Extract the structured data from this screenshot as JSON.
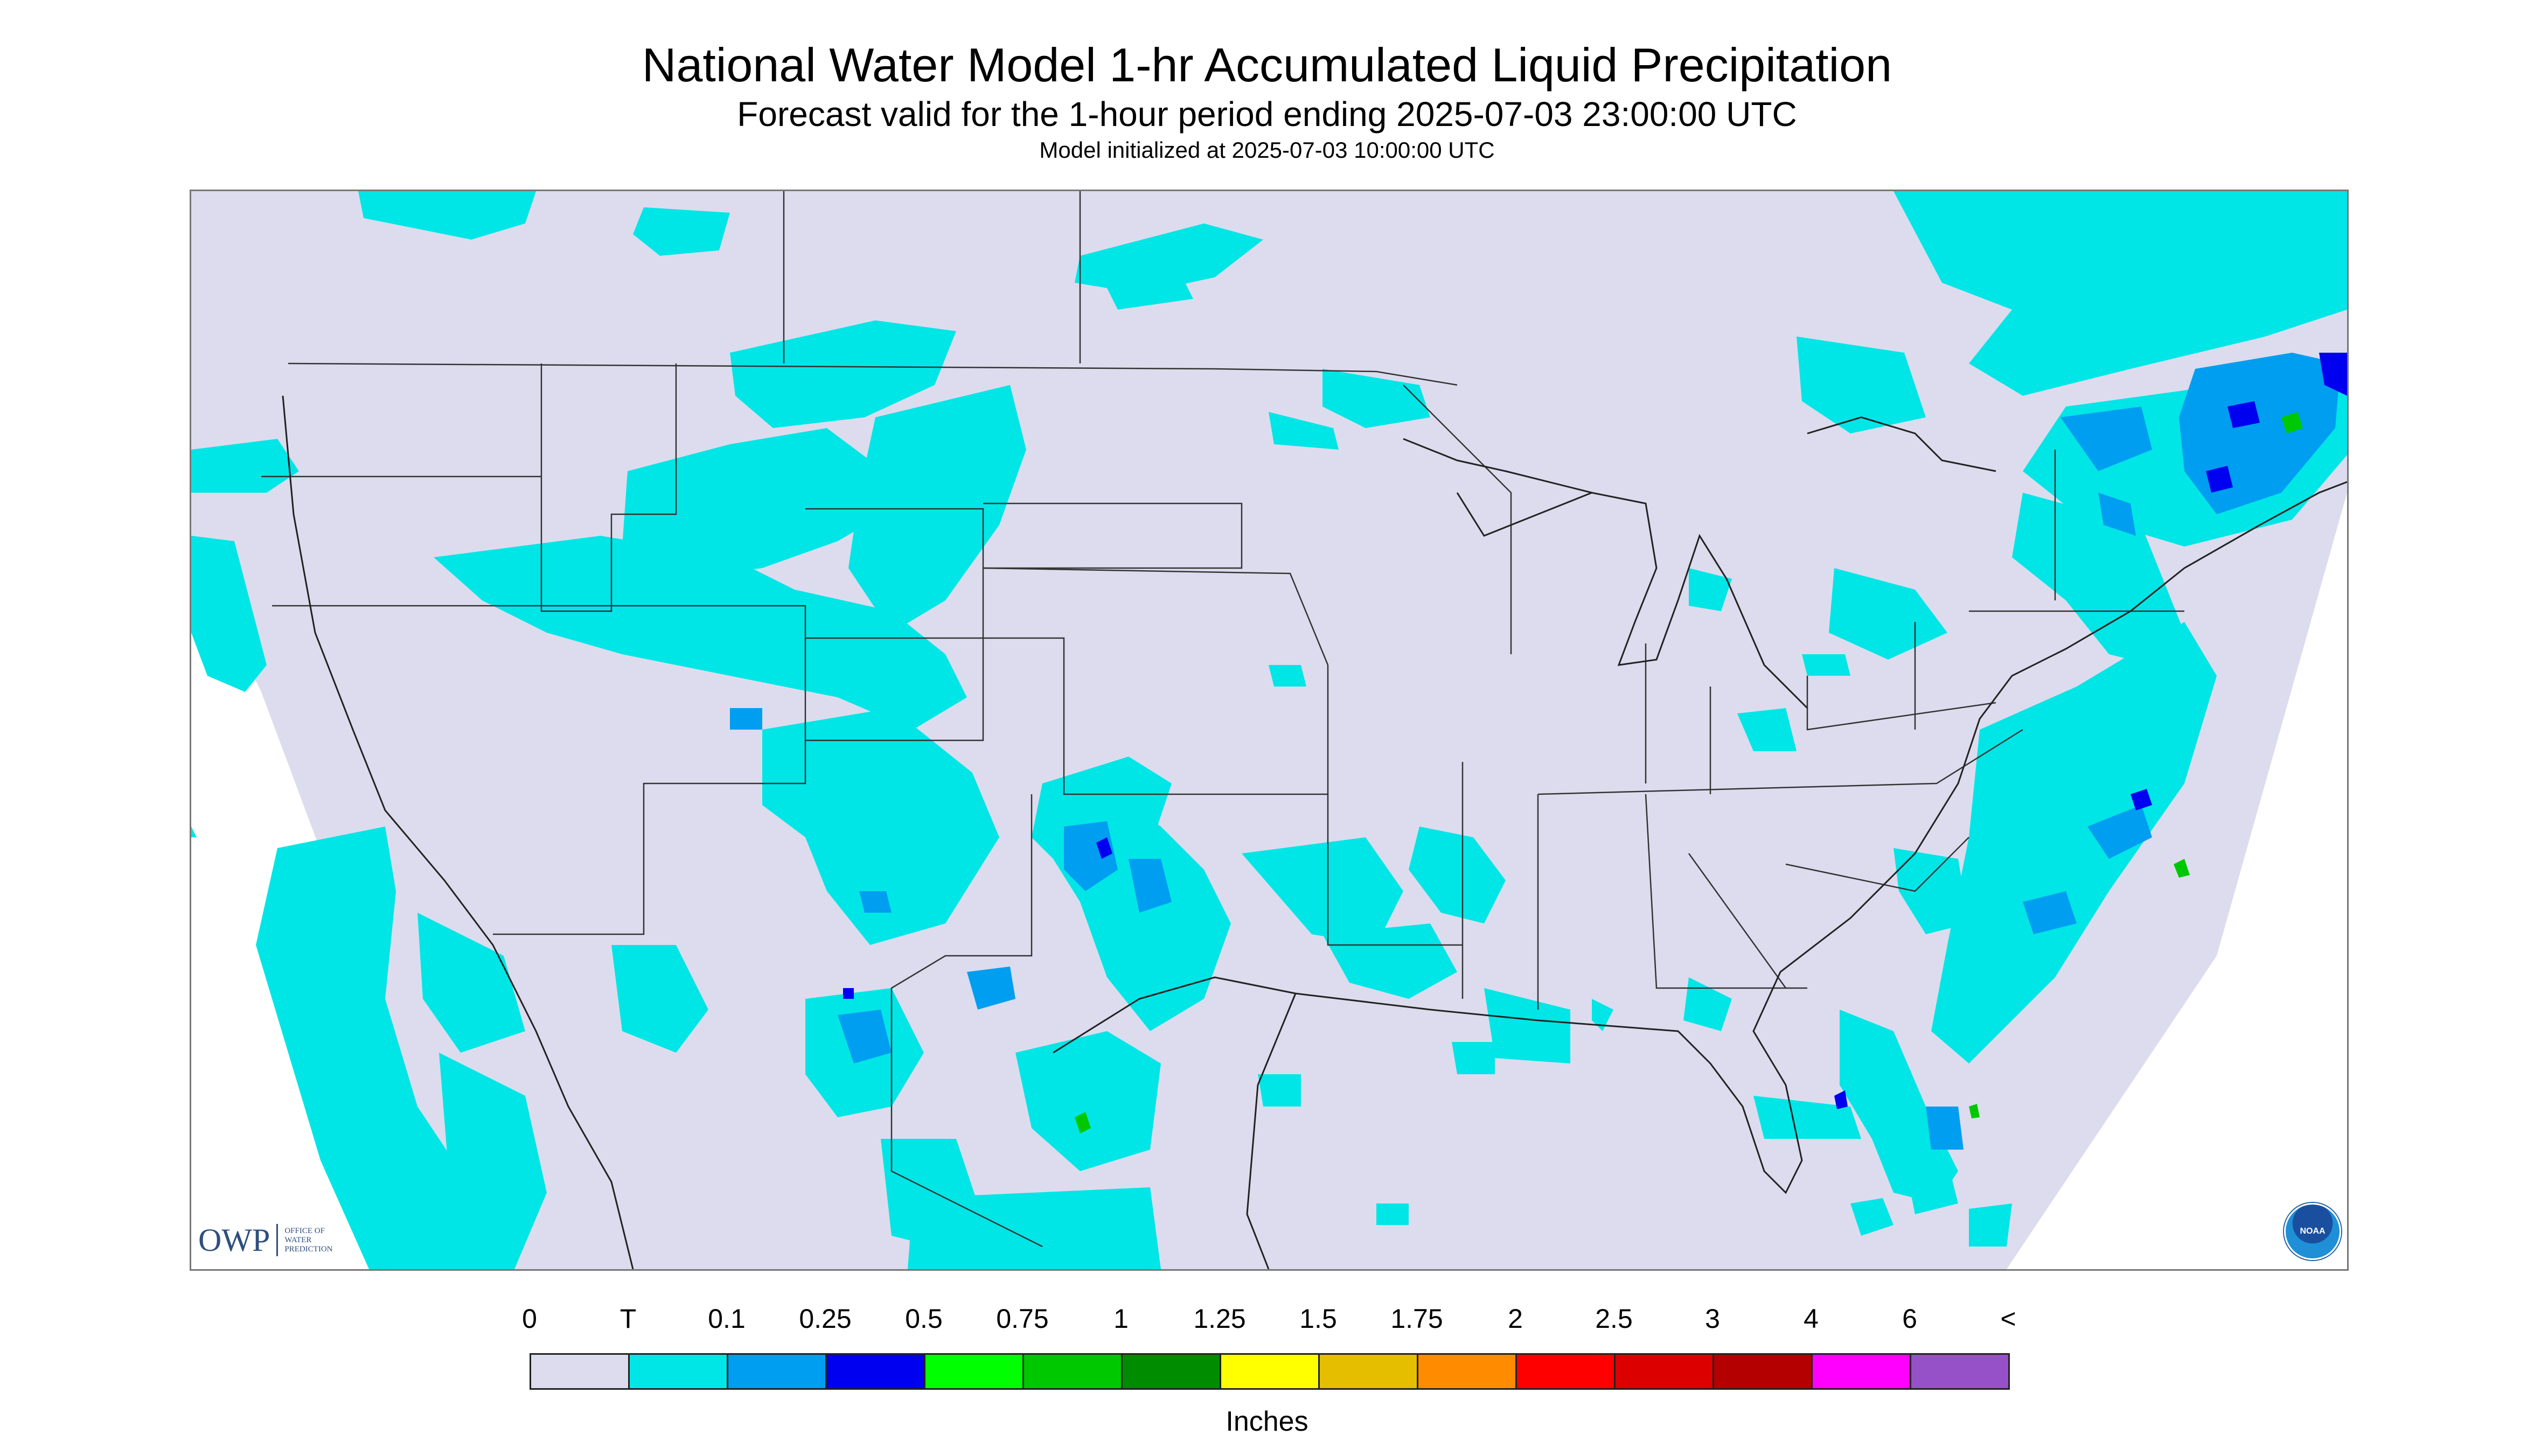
{
  "header": {
    "title": "National Water Model 1-hr Accumulated Liquid Precipitation",
    "subtitle": "Forecast valid for the 1-hour period ending 2025-07-03 23:00:00 UTC",
    "init": "Model initialized at 2025-07-03 10:00:00 UTC"
  },
  "logos": {
    "owp_text": "OWP",
    "owp_sub1": "OFFICE OF",
    "owp_sub2": "WATER",
    "owp_sub3": "PREDICTION",
    "noaa_text": "NOAA"
  },
  "map": {
    "background_color": "#dcdcee",
    "trace_color": "#00e6e6",
    "light_color": "#009ef0",
    "medium_color": "#0000f0",
    "heavy_color": "#00c800"
  },
  "legend": {
    "ticks": [
      "0",
      "T",
      "0.1",
      "0.25",
      "0.5",
      "0.75",
      "1",
      "1.25",
      "1.5",
      "1.75",
      "2",
      "2.5",
      "3",
      "4",
      "6",
      "<"
    ],
    "colors": [
      "#dcdcee",
      "#00e6e6",
      "#009ef0",
      "#0000f0",
      "#00ff00",
      "#00c800",
      "#008c00",
      "#ffff00",
      "#e6be00",
      "#ff8c00",
      "#ff0000",
      "#dc0000",
      "#b40000",
      "#ff00ff",
      "#9650c8"
    ],
    "units": "Inches"
  }
}
